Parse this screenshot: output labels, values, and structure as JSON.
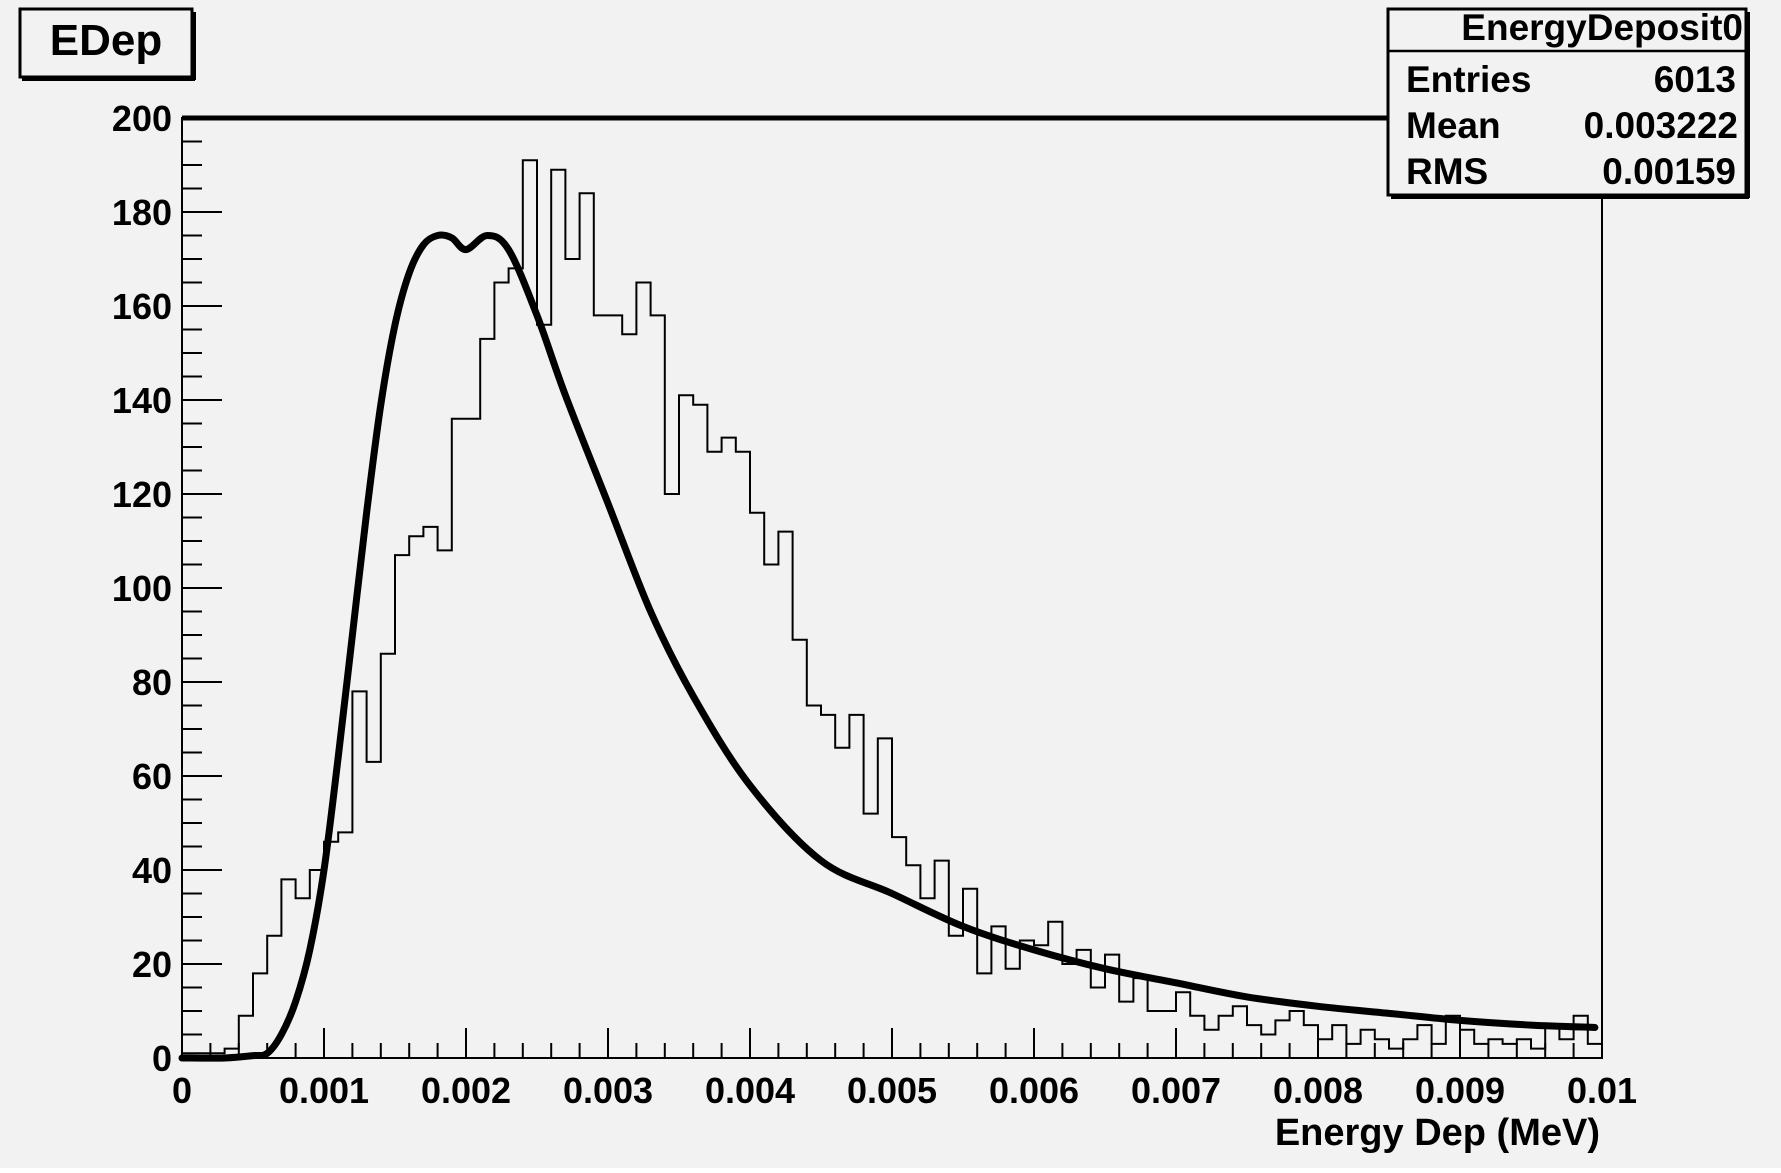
{
  "title_box": {
    "label": "EDep"
  },
  "stats": {
    "name": "EnergyDeposit0",
    "rows": [
      {
        "label": "Entries",
        "value": "6013"
      },
      {
        "label": "Mean",
        "value": "0.003222"
      },
      {
        "label": "RMS",
        "value": "0.00159"
      }
    ]
  },
  "colors": {
    "background": "#f2f2f2",
    "line": "#000000"
  },
  "chart_data": {
    "type": "area",
    "title": "EDep",
    "xlabel": "Energy Dep (MeV)",
    "ylabel": "",
    "xlim": [
      0,
      0.01
    ],
    "ylim": [
      0,
      200
    ],
    "x_ticks": [
      0,
      0.001,
      0.002,
      0.003,
      0.004,
      0.005,
      0.006,
      0.007,
      0.008,
      0.009,
      0.01
    ],
    "x_tick_labels": [
      "0",
      "0.001",
      "0.002",
      "0.003",
      "0.004",
      "0.005",
      "0.006",
      "0.007",
      "0.008",
      "0.009",
      "0.01"
    ],
    "y_ticks": [
      0,
      20,
      40,
      60,
      80,
      100,
      120,
      140,
      160,
      180,
      200
    ],
    "y_tick_labels": [
      "0",
      "20",
      "40",
      "60",
      "80",
      "100",
      "120",
      "140",
      "160",
      "180",
      "200"
    ],
    "grid": false,
    "legend": "top-right",
    "series": [
      {
        "type": "histogram",
        "bin_width": 0.0001,
        "x_start": 0,
        "values": [
          1,
          1,
          1,
          2,
          9,
          18,
          26,
          38,
          34,
          40,
          46,
          48,
          78,
          63,
          86,
          107,
          111,
          113,
          108,
          136,
          136,
          153,
          165,
          168,
          191,
          156,
          189,
          170,
          184,
          158,
          158,
          154,
          165,
          158,
          120,
          141,
          139,
          129,
          132,
          129,
          116,
          105,
          112,
          89,
          75,
          73,
          66,
          73,
          52,
          68,
          47,
          41,
          34,
          42,
          26,
          36,
          18,
          28,
          19,
          25,
          24,
          29,
          20,
          23,
          15,
          22,
          12,
          17,
          10,
          10,
          14,
          9,
          6,
          9,
          11,
          7,
          5,
          8,
          10,
          7,
          4,
          7,
          3,
          6,
          4,
          2,
          4,
          7,
          3,
          9,
          6,
          3,
          4,
          3,
          4,
          2,
          7,
          4,
          9,
          3
        ]
      },
      {
        "type": "fit",
        "x": [
          0,
          0.0003,
          0.0005,
          0.0006,
          0.0007,
          0.0008,
          0.0009,
          0.001,
          0.0011,
          0.0012,
          0.0013,
          0.0014,
          0.0015,
          0.0016,
          0.0017,
          0.0018,
          0.0019,
          0.002,
          0.00215,
          0.0023,
          0.0025,
          0.0027,
          0.003,
          0.0033,
          0.0036,
          0.004,
          0.0045,
          0.005,
          0.0055,
          0.006,
          0.0065,
          0.007,
          0.0075,
          0.008,
          0.0085,
          0.009,
          0.0095,
          0.00995
        ],
        "y": [
          0,
          0,
          0.5,
          1,
          5,
          12,
          23,
          40,
          64,
          90,
          116,
          139,
          156,
          167,
          173,
          175,
          174.5,
          172,
          175,
          172,
          158,
          141,
          118,
          95,
          77,
          58,
          42,
          35,
          28,
          23,
          19,
          16,
          13,
          11,
          9.5,
          8,
          7,
          6.5
        ]
      }
    ]
  }
}
